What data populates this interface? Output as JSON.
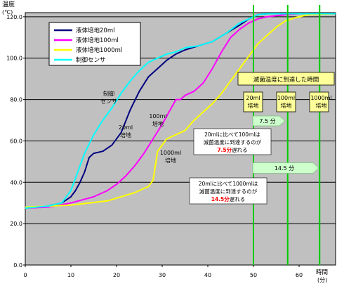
{
  "chart_data": {
    "type": "line",
    "ylabel": "温度",
    "yunit": "(℃)",
    "xlabel": "時間",
    "xunit": "(分)",
    "xlim": [
      0,
      68
    ],
    "ylim": [
      0,
      122
    ],
    "xticks": [
      0,
      10,
      20,
      30,
      40,
      50,
      60
    ],
    "yticks": [
      0,
      20,
      40,
      60,
      80,
      100,
      120
    ],
    "xtick_labels": [
      "0",
      "10",
      "20",
      "30",
      "40",
      "50",
      "60"
    ],
    "ytick_labels": [
      "0.0",
      "20.0",
      "40.0",
      "60.0",
      "80.0",
      "100.0",
      "120.0"
    ],
    "grid": true,
    "legend_position": "top-left",
    "series": [
      {
        "name": "液体培地20ml",
        "color": "#000080",
        "x": [
          0,
          5,
          8,
          10,
          11,
          12,
          13,
          14,
          15,
          17,
          19,
          21,
          23,
          25,
          27,
          29,
          31,
          33,
          35,
          38,
          41,
          44,
          47,
          49,
          51,
          53,
          55,
          57,
          60,
          68
        ],
        "y": [
          27.5,
          28.5,
          30,
          33,
          36,
          40,
          45,
          52,
          54,
          55,
          58,
          64,
          75,
          84,
          91,
          95,
          99,
          102,
          104,
          106,
          108,
          112,
          116,
          119,
          121,
          121.5,
          121.5,
          121.5,
          121.5,
          121.5
        ]
      },
      {
        "name": "液体培地100ml",
        "color": "#ff00ff",
        "x": [
          0,
          5,
          10,
          15,
          18,
          20,
          22,
          24,
          26,
          28,
          30,
          32,
          33,
          34,
          35,
          37,
          39,
          41,
          43,
          45,
          47,
          49,
          51,
          53,
          55,
          57,
          60,
          68
        ],
        "y": [
          27.5,
          28,
          30,
          33,
          36,
          39,
          43,
          48,
          54,
          61,
          68,
          76,
          80,
          80,
          82,
          84,
          88,
          95,
          103,
          110,
          114,
          117,
          119,
          120,
          120.5,
          121,
          121.5,
          121.5
        ]
      },
      {
        "name": "液体培地1000ml",
        "color": "#ffff00",
        "x": [
          0,
          10,
          18,
          24,
          27,
          28,
          29,
          31,
          33,
          35,
          37,
          39,
          41,
          43,
          45,
          47,
          49,
          51,
          53,
          55,
          57,
          59,
          62,
          68
        ],
        "y": [
          28,
          29,
          31,
          35,
          38,
          41,
          55,
          61,
          63,
          65,
          70,
          74,
          78,
          83,
          89,
          95,
          101,
          107,
          111,
          115,
          118,
          119.5,
          121,
          121.5
        ]
      },
      {
        "name": "制御センサ",
        "color": "#00ffff",
        "x": [
          0,
          5,
          8,
          10,
          11,
          12,
          13,
          15,
          17,
          19,
          21,
          23,
          25,
          27,
          29,
          31,
          33,
          35,
          38,
          41,
          44,
          47,
          49,
          51,
          53,
          55,
          60,
          68
        ],
        "y": [
          27.5,
          28.5,
          30,
          36,
          42,
          48,
          54,
          63,
          70,
          76,
          83,
          89,
          94,
          98,
          100,
          102,
          103,
          105,
          106,
          108,
          112,
          117,
          119,
          121,
          121.5,
          121.5,
          121.5,
          121.5
        ]
      }
    ],
    "vlines": [
      {
        "x": 50,
        "color": "#00cc00"
      },
      {
        "x": 57.5,
        "color": "#00cc00"
      },
      {
        "x": 64.5,
        "color": "#00cc00"
      }
    ],
    "annotations": {
      "sterilization_title": "滅菌温度に到達した時間",
      "box_20ml": [
        "20ml",
        "培地"
      ],
      "box_100ml": [
        "100ml",
        "培地"
      ],
      "box_1000ml": [
        "1000ml",
        "培地"
      ],
      "arrow_7_5": "7.5 分",
      "arrow_14_5": "14.5 分",
      "note_100ml": {
        "line1": "20mlに比べて100mlは",
        "line2": "滅菌温度に到達するのが",
        "highlight": "7.5分",
        "tail": "遅れる"
      },
      "note_1000ml": {
        "line1": "20mlに比べて1000mlは",
        "line2": "滅菌温度に到達するのが",
        "highlight": "14.5分",
        "tail": "遅れる"
      },
      "label_sensor": [
        "制御",
        "センサ"
      ],
      "label_20ml": [
        "20ml",
        "培地"
      ],
      "label_100ml": [
        "100ml",
        "培地"
      ],
      "label_1000ml": [
        "1000ml",
        "培地"
      ]
    }
  }
}
